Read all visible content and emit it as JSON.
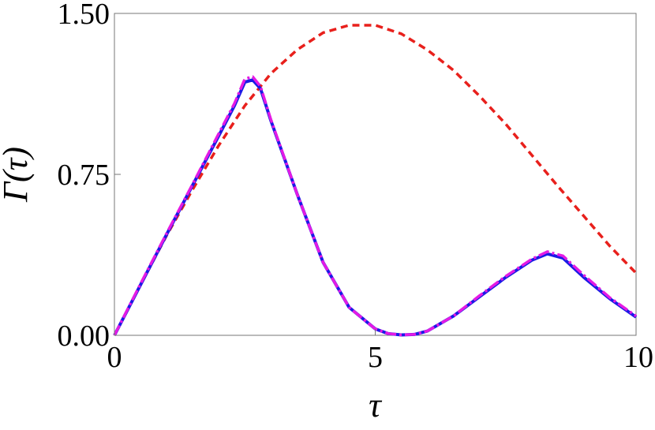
{
  "chart_data": {
    "type": "line",
    "title": "",
    "xlabel": "τ",
    "ylabel": "Γ(τ)",
    "xlim": [
      0,
      10
    ],
    "ylim": [
      0,
      1.5
    ],
    "grid": false,
    "x_ticks": [
      "0",
      "5",
      "10"
    ],
    "x_tick_values": [
      0,
      5,
      10
    ],
    "y_ticks": [
      "0.00",
      "0.75",
      "1.50"
    ],
    "y_tick_values": [
      0,
      0.75,
      1.5
    ],
    "series": [
      {
        "color": "#e8201c",
        "style": "dashed",
        "x": [
          0,
          0.5,
          1,
          1.5,
          2,
          2.5,
          3,
          3.5,
          4,
          4.5,
          5,
          5.5,
          6,
          6.5,
          7,
          7.5,
          8,
          8.5,
          9,
          9.5,
          10
        ],
        "y": [
          0,
          0.235,
          0.465,
          0.68,
          0.885,
          1.07,
          1.22,
          1.33,
          1.41,
          1.445,
          1.445,
          1.405,
          1.33,
          1.235,
          1.115,
          0.985,
          0.84,
          0.695,
          0.555,
          0.415,
          0.29
        ]
      },
      {
        "color": "#1a1ae6",
        "style": "solid",
        "x": [
          0,
          0.5,
          1,
          1.5,
          2,
          2.3,
          2.5,
          2.65,
          2.8,
          3,
          3.5,
          4,
          4.5,
          5,
          5.25,
          5.5,
          5.75,
          6,
          6.5,
          7,
          7.5,
          8,
          8.3,
          8.6,
          9,
          9.5,
          10
        ],
        "y": [
          0,
          0.235,
          0.47,
          0.7,
          0.93,
          1.07,
          1.18,
          1.19,
          1.15,
          1.0,
          0.66,
          0.34,
          0.13,
          0.03,
          0.008,
          0.002,
          0.004,
          0.02,
          0.09,
          0.18,
          0.27,
          0.35,
          0.38,
          0.36,
          0.27,
          0.17,
          0.085
        ]
      },
      {
        "color": "#e41ae4",
        "style": "dashdot",
        "x": [
          0,
          0.5,
          1,
          1.5,
          2,
          2.3,
          2.5,
          2.65,
          2.8,
          3,
          3.5,
          4,
          4.5,
          5,
          5.25,
          5.5,
          5.75,
          6,
          6.5,
          7,
          7.5,
          8,
          8.3,
          8.6,
          9,
          9.5,
          10
        ],
        "y": [
          0,
          0.24,
          0.475,
          0.705,
          0.94,
          1.08,
          1.195,
          1.205,
          1.16,
          1.005,
          0.66,
          0.34,
          0.13,
          0.03,
          0.008,
          0.002,
          0.004,
          0.02,
          0.09,
          0.185,
          0.275,
          0.355,
          0.39,
          0.37,
          0.28,
          0.175,
          0.09
        ]
      }
    ]
  }
}
